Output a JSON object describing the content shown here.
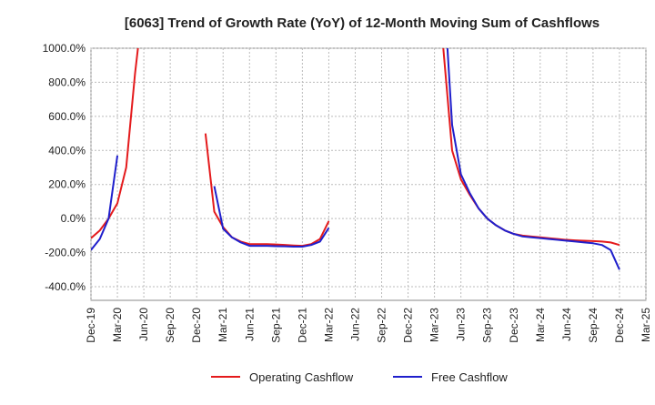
{
  "chart_data": {
    "type": "line",
    "title": "[6063]  Trend of Growth Rate (YoY) of 12-Month Moving Sum of Cashflows",
    "xlabel": "",
    "ylabel": "",
    "ylim": [
      -480,
      1000
    ],
    "yticks": [
      -400,
      -200,
      0,
      200,
      400,
      600,
      800,
      1000
    ],
    "ytick_labels": [
      "-400.0%",
      "-200.0%",
      "0.0%",
      "200.0%",
      "400.0%",
      "600.0%",
      "800.0%",
      "1000.0%"
    ],
    "xticks": [
      "Dec-19",
      "Mar-20",
      "Jun-20",
      "Sep-20",
      "Dec-20",
      "Mar-21",
      "Jun-21",
      "Sep-21",
      "Dec-21",
      "Mar-22",
      "Jun-22",
      "Sep-22",
      "Dec-22",
      "Mar-23",
      "Jun-23",
      "Sep-23",
      "Dec-23",
      "Mar-24",
      "Jun-24",
      "Sep-24",
      "Dec-24",
      "Mar-25"
    ],
    "x": [
      "Dec-19",
      "Jan-20",
      "Feb-20",
      "Mar-20",
      "Apr-20",
      "May-20",
      "Jun-20",
      "Jul-20",
      "Aug-20",
      "Sep-20",
      "Oct-20",
      "Nov-20",
      "Dec-20",
      "Jan-21",
      "Feb-21",
      "Mar-21",
      "Apr-21",
      "May-21",
      "Jun-21",
      "Jul-21",
      "Aug-21",
      "Sep-21",
      "Oct-21",
      "Nov-21",
      "Dec-21",
      "Jan-22",
      "Feb-22",
      "Mar-22",
      "Apr-22",
      "May-22",
      "Jun-22",
      "Jul-22",
      "Aug-22",
      "Sep-22",
      "Oct-22",
      "Nov-22",
      "Dec-22",
      "Jan-23",
      "Feb-23",
      "Mar-23",
      "Apr-23",
      "May-23",
      "Jun-23",
      "Jul-23",
      "Aug-23",
      "Sep-23",
      "Oct-23",
      "Nov-23",
      "Dec-23",
      "Jan-24",
      "Feb-24",
      "Mar-24",
      "Apr-24",
      "May-24",
      "Jun-24",
      "Jul-24",
      "Aug-24",
      "Sep-24",
      "Oct-24",
      "Nov-24",
      "Dec-24",
      "Jan-25",
      "Feb-25",
      "Mar-25"
    ],
    "grid": true,
    "legend": "bottom-center",
    "series": [
      {
        "name": "Operating Cashflow",
        "color": "#e41a1c",
        "values": [
          -115,
          -70,
          0,
          90,
          300,
          850,
          1300,
          null,
          null,
          null,
          null,
          null,
          null,
          500,
          40,
          -50,
          -110,
          -135,
          -150,
          -150,
          -150,
          -152,
          -155,
          -158,
          -160,
          -150,
          -120,
          -15,
          null,
          null,
          null,
          null,
          null,
          null,
          null,
          null,
          null,
          null,
          null,
          1400,
          1000,
          400,
          230,
          140,
          60,
          0,
          -40,
          -70,
          -90,
          -100,
          -105,
          -110,
          -115,
          -120,
          -125,
          -128,
          -130,
          -132,
          -135,
          -140,
          -155,
          null,
          null,
          null
        ]
      },
      {
        "name": "Free Cashflow",
        "color": "#1f1fcc",
        "values": [
          -185,
          -120,
          0,
          370,
          null,
          null,
          null,
          null,
          null,
          null,
          null,
          null,
          null,
          null,
          190,
          -60,
          -110,
          -140,
          -160,
          -160,
          -160,
          -162,
          -163,
          -165,
          -165,
          -155,
          -135,
          -55,
          null,
          null,
          null,
          null,
          null,
          null,
          null,
          null,
          null,
          null,
          null,
          null,
          1400,
          550,
          260,
          150,
          60,
          0,
          -40,
          -70,
          -90,
          -105,
          -110,
          -115,
          -120,
          -125,
          -130,
          -135,
          -140,
          -145,
          -155,
          -185,
          -300,
          null,
          null,
          null
        ]
      }
    ]
  }
}
